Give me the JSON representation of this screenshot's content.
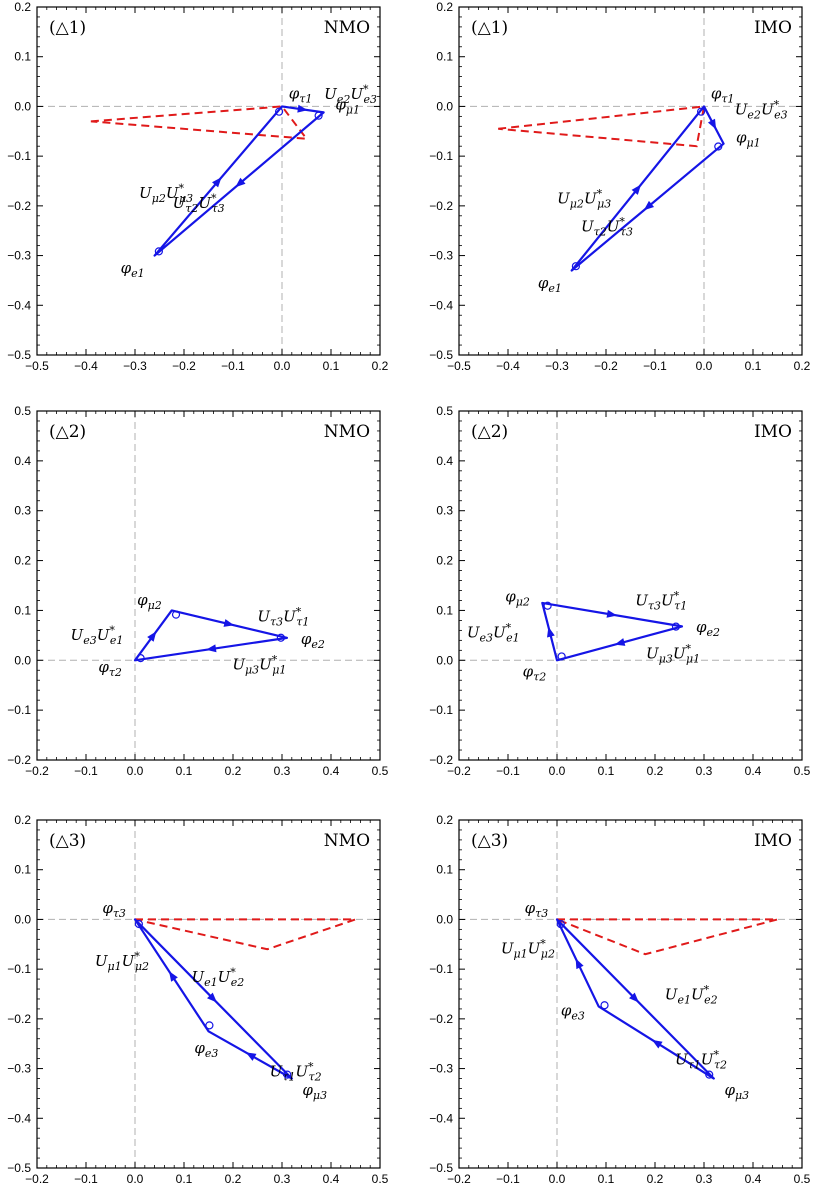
{
  "colors": {
    "triangle": "#1515e6",
    "dashed": "#e01a1a",
    "axis": "#b0b0b0"
  },
  "chart_data": [
    {
      "type": "diagram",
      "id": "p11",
      "label": "(△1)",
      "ordering": "NMO",
      "xlim": [
        -0.5,
        0.2
      ],
      "ylim": [
        -0.5,
        0.2
      ],
      "xticks": [
        "−0.5",
        "−0.4",
        "−0.3",
        "−0.2",
        "−0.1",
        "0.0",
        "0.1",
        "0.2"
      ],
      "yticks": [
        "−0.5",
        "−0.4",
        "−0.3",
        "−0.2",
        "−0.1",
        "0.0",
        "0.1",
        "0.2"
      ],
      "triangle": [
        [
          0.0,
          0.0
        ],
        [
          0.085,
          -0.012
        ],
        [
          -0.26,
          -0.3
        ]
      ],
      "dashed": [
        [
          -0.39,
          -0.03
        ],
        [
          0.0,
          0.0
        ],
        [
          0.05,
          -0.065
        ]
      ],
      "sides": [
        {
          "from": 0,
          "to": 1,
          "text": "U_{e2}U^*_{e3}"
        },
        {
          "from": 2,
          "to": 0,
          "text": "U_{μ2}U^*_{μ3}"
        },
        {
          "from": 1,
          "to": 2,
          "text": "U_{τ2}U^*_{τ3}"
        }
      ],
      "vertices": [
        "φ_{τ1}",
        "φ_{μ1}",
        "φ_{e1}"
      ]
    },
    {
      "type": "diagram",
      "id": "p12",
      "label": "(△1)",
      "ordering": "IMO",
      "xlim": [
        -0.5,
        0.2
      ],
      "ylim": [
        -0.5,
        0.2
      ],
      "xticks": [
        "−0.5",
        "−0.4",
        "−0.3",
        "−0.2",
        "−0.1",
        "0.0",
        "0.1",
        "0.2"
      ],
      "yticks": [
        "−0.5",
        "−0.4",
        "−0.3",
        "−0.2",
        "−0.1",
        "0.0",
        "0.1",
        "0.2"
      ],
      "triangle": [
        [
          0.0,
          0.0
        ],
        [
          0.04,
          -0.075
        ],
        [
          -0.27,
          -0.33
        ]
      ],
      "dashed": [
        [
          -0.42,
          -0.045
        ],
        [
          0.0,
          0.0
        ],
        [
          -0.015,
          -0.08
        ]
      ],
      "sides": [
        {
          "from": 0,
          "to": 1,
          "text": "U_{e2}U^*_{e3}"
        },
        {
          "from": 2,
          "to": 0,
          "text": "U_{μ2}U^*_{μ3}"
        },
        {
          "from": 1,
          "to": 2,
          "text": "U_{τ2}U^*_{τ3}"
        }
      ],
      "vertices": [
        "φ_{τ1}",
        "φ_{μ1}",
        "φ_{e1}"
      ]
    },
    {
      "type": "diagram",
      "id": "p21",
      "label": "(△2)",
      "ordering": "NMO",
      "xlim": [
        -0.2,
        0.5
      ],
      "ylim": [
        -0.2,
        0.5
      ],
      "xticks": [
        "−0.2",
        "−0.1",
        "0.0",
        "0.1",
        "0.2",
        "0.3",
        "0.4",
        "0.5"
      ],
      "yticks": [
        "−0.2",
        "−0.1",
        "0.0",
        "0.1",
        "0.2",
        "0.3",
        "0.4",
        "0.5"
      ],
      "triangle": [
        [
          0.0,
          0.0
        ],
        [
          0.075,
          0.1
        ],
        [
          0.31,
          0.045
        ]
      ],
      "dashed": [],
      "sides": [
        {
          "from": 0,
          "to": 1,
          "text": "U_{e3}U^*_{e1}"
        },
        {
          "from": 1,
          "to": 2,
          "text": "U_{τ3}U^*_{τ1}"
        },
        {
          "from": 2,
          "to": 0,
          "text": "U_{μ3}U^*_{μ1}"
        }
      ],
      "vertices": [
        "φ_{τ2}",
        "φ_{μ2}",
        "φ_{e2}"
      ]
    },
    {
      "type": "diagram",
      "id": "p22",
      "label": "(△2)",
      "ordering": "IMO",
      "xlim": [
        -0.2,
        0.5
      ],
      "ylim": [
        -0.2,
        0.5
      ],
      "xticks": [
        "−0.2",
        "−0.1",
        "0.0",
        "0.1",
        "0.2",
        "0.3",
        "0.4",
        "0.5"
      ],
      "yticks": [
        "−0.2",
        "−0.1",
        "0.0",
        "0.1",
        "0.2",
        "0.3",
        "0.4",
        "0.5"
      ],
      "triangle": [
        [
          0.0,
          0.0
        ],
        [
          -0.03,
          0.115
        ],
        [
          0.255,
          0.068
        ]
      ],
      "dashed": [],
      "sides": [
        {
          "from": 0,
          "to": 1,
          "text": "U_{e3}U^*_{e1}"
        },
        {
          "from": 1,
          "to": 2,
          "text": "U_{τ3}U^*_{τ1}"
        },
        {
          "from": 2,
          "to": 0,
          "text": "U_{μ3}U^*_{μ1}"
        }
      ],
      "vertices": [
        "φ_{τ2}",
        "φ_{μ2}",
        "φ_{e2}"
      ]
    },
    {
      "type": "diagram",
      "id": "p31",
      "label": "(△3)",
      "ordering": "NMO",
      "xlim": [
        -0.2,
        0.5
      ],
      "ylim": [
        -0.5,
        0.2
      ],
      "xticks": [
        "−0.2",
        "−0.1",
        "0.0",
        "0.1",
        "0.2",
        "0.3",
        "0.4",
        "0.5"
      ],
      "yticks": [
        "−0.5",
        "−0.4",
        "−0.3",
        "−0.2",
        "−0.1",
        "0.0",
        "0.1",
        "0.2"
      ],
      "triangle": [
        [
          0.0,
          0.0
        ],
        [
          0.32,
          -0.32
        ],
        [
          0.15,
          -0.225
        ]
      ],
      "dashed": [
        [
          0.0,
          0.0
        ],
        [
          0.45,
          0.0
        ],
        [
          0.27,
          -0.06
        ]
      ],
      "sides": [
        {
          "from": 0,
          "to": 1,
          "text": "U_{e1}U^*_{e2}"
        },
        {
          "from": 1,
          "to": 2,
          "text": "U_{τ1}U^*_{τ2}"
        },
        {
          "from": 2,
          "to": 0,
          "text": "U_{μ1}U^*_{μ2}"
        }
      ],
      "vertices": [
        "φ_{τ3}",
        "φ_{μ3}",
        "φ_{e3}"
      ]
    },
    {
      "type": "diagram",
      "id": "p32",
      "label": "(△3)",
      "ordering": "IMO",
      "xlim": [
        -0.2,
        0.5
      ],
      "ylim": [
        -0.5,
        0.2
      ],
      "xticks": [
        "−0.2",
        "−0.1",
        "0.0",
        "0.1",
        "0.2",
        "0.3",
        "0.4",
        "0.5"
      ],
      "yticks": [
        "−0.5",
        "−0.4",
        "−0.3",
        "−0.2",
        "−0.1",
        "0.0",
        "0.1",
        "0.2"
      ],
      "triangle": [
        [
          0.0,
          0.0
        ],
        [
          0.32,
          -0.32
        ],
        [
          0.085,
          -0.175
        ]
      ],
      "dashed": [
        [
          0.0,
          0.0
        ],
        [
          0.45,
          0.0
        ],
        [
          0.18,
          -0.07
        ]
      ],
      "sides": [
        {
          "from": 0,
          "to": 1,
          "text": "U_{e1}U^*_{e2}"
        },
        {
          "from": 1,
          "to": 2,
          "text": "U_{τ1}U^*_{τ2}"
        },
        {
          "from": 2,
          "to": 0,
          "text": "U_{μ1}U^*_{μ2}"
        }
      ],
      "vertices": [
        "φ_{τ3}",
        "φ_{μ3}",
        "φ_{e3}"
      ]
    }
  ]
}
